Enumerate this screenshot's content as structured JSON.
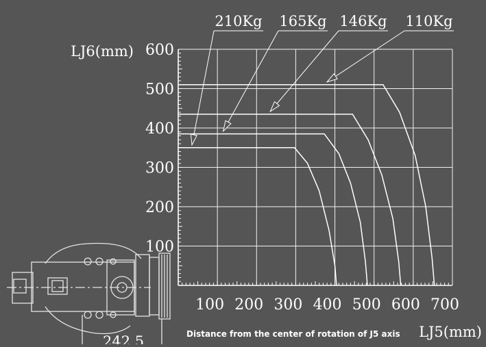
{
  "chart_data": {
    "type": "line",
    "title": "",
    "xlabel": "LJ5(mm)",
    "ylabel": "LJ6(mm)",
    "xlabel_note": "Distance from the center of rotation of J5 axis",
    "xlim": [
      0,
      700
    ],
    "ylim": [
      0,
      600
    ],
    "x_ticks": [
      "100",
      "200",
      "300",
      "400",
      "500",
      "600",
      "700"
    ],
    "y_ticks": [
      "100",
      "200",
      "300",
      "400",
      "500",
      "600"
    ],
    "grid": true,
    "series": [
      {
        "name": "210Kg",
        "flat_y": 350,
        "x": [
          0,
          297,
          330,
          360,
          385,
          400,
          404
        ],
        "y": [
          350,
          350,
          310,
          240,
          140,
          50,
          0
        ]
      },
      {
        "name": "165Kg",
        "flat_y": 385,
        "x": [
          0,
          373,
          410,
          440,
          465,
          478,
          483
        ],
        "y": [
          385,
          385,
          335,
          260,
          160,
          60,
          0
        ]
      },
      {
        "name": "146Kg",
        "flat_y": 435,
        "x": [
          0,
          445,
          485,
          520,
          548,
          563,
          568
        ],
        "y": [
          435,
          435,
          370,
          280,
          170,
          60,
          0
        ]
      },
      {
        "name": "110Kg",
        "flat_y": 510,
        "x": [
          0,
          523,
          565,
          605,
          632,
          648,
          654
        ],
        "y": [
          510,
          510,
          440,
          330,
          200,
          70,
          0
        ]
      }
    ],
    "figure_note": "242.5"
  }
}
